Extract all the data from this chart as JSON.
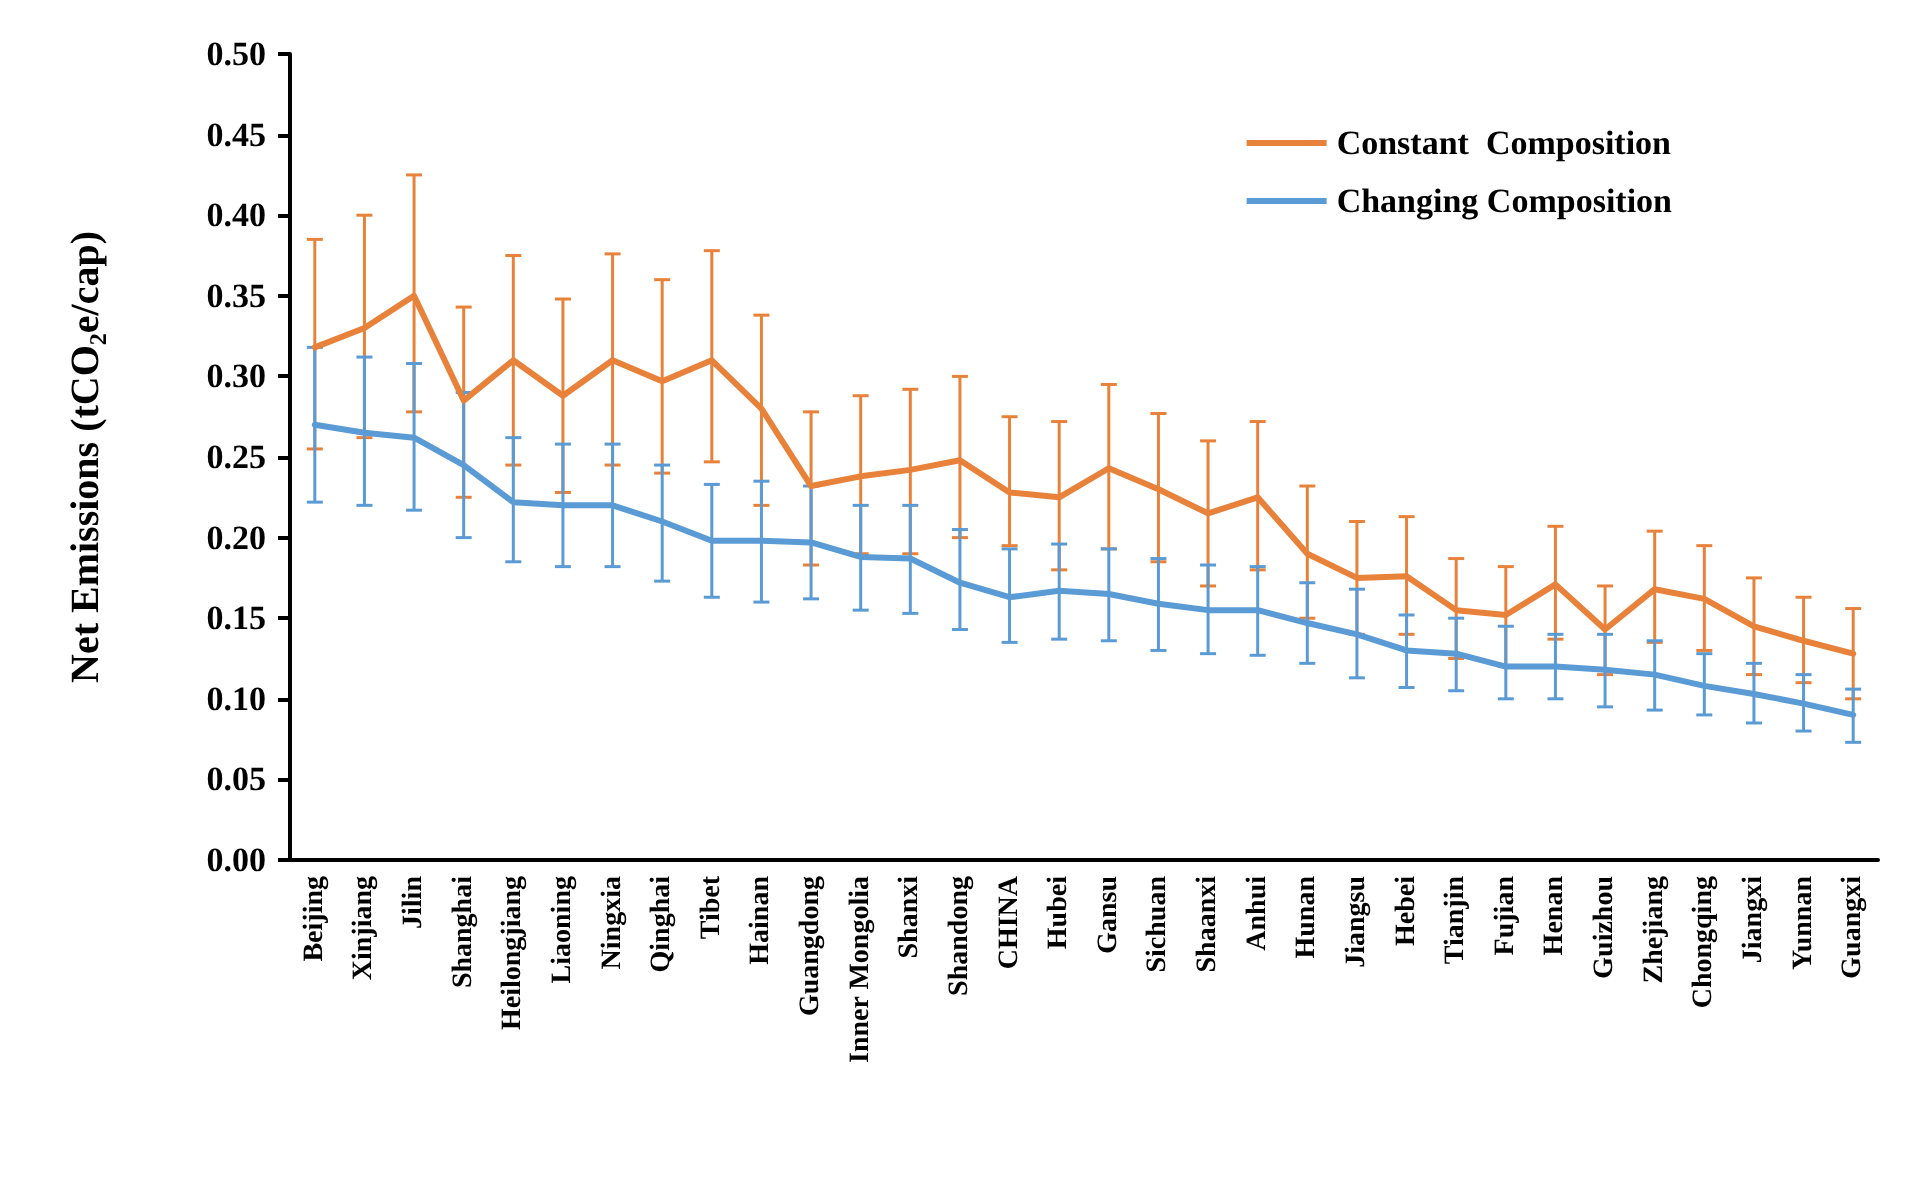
{
  "chart_data": {
    "type": "line",
    "ylabel": "Net Emissions (tCO₂e/cap)",
    "categories": [
      "Beijing",
      "Xinjiang",
      "Jilin",
      "Shanghai",
      "Heilongjiang",
      "Liaoning",
      "Ningxia",
      "Qinghai",
      "Tibet",
      "Hainan",
      "Guangdong",
      "Inner Mongolia",
      "Shanxi",
      "Shandong",
      "CHINA",
      "Hubei",
      "Gansu",
      "Sichuan",
      "Shaanxi",
      "Anhui",
      "Hunan",
      "Jiangsu",
      "Hebei",
      "Tianjin",
      "Fujian",
      "Henan",
      "Guizhou",
      "Zhejiang",
      "Chongqing",
      "Jiangxi",
      "Yunnan",
      "Guangxi"
    ],
    "series": [
      {
        "name": "Constant  Composition",
        "color": "#e8823a",
        "values": [
          0.318,
          0.33,
          0.35,
          0.285,
          0.31,
          0.288,
          0.31,
          0.297,
          0.31,
          0.28,
          0.232,
          0.238,
          0.242,
          0.248,
          0.228,
          0.225,
          0.243,
          0.23,
          0.215,
          0.225,
          0.19,
          0.175,
          0.176,
          0.155,
          0.152,
          0.171,
          0.143,
          0.168,
          0.162,
          0.145,
          0.136,
          0.128
        ],
        "errors": [
          [
            0.255,
            0.385
          ],
          [
            0.262,
            0.4
          ],
          [
            0.278,
            0.425
          ],
          [
            0.225,
            0.343
          ],
          [
            0.245,
            0.375
          ],
          [
            0.228,
            0.348
          ],
          [
            0.245,
            0.376
          ],
          [
            0.24,
            0.36
          ],
          [
            0.247,
            0.378
          ],
          [
            0.22,
            0.338
          ],
          [
            0.183,
            0.278
          ],
          [
            0.19,
            0.288
          ],
          [
            0.19,
            0.292
          ],
          [
            0.2,
            0.3
          ],
          [
            0.195,
            0.275
          ],
          [
            0.18,
            0.272
          ],
          [
            0.193,
            0.295
          ],
          [
            0.185,
            0.277
          ],
          [
            0.17,
            0.26
          ],
          [
            0.18,
            0.272
          ],
          [
            0.15,
            0.232
          ],
          [
            0.14,
            0.21
          ],
          [
            0.14,
            0.213
          ],
          [
            0.125,
            0.187
          ],
          [
            0.12,
            0.182
          ],
          [
            0.137,
            0.207
          ],
          [
            0.115,
            0.17
          ],
          [
            0.135,
            0.204
          ],
          [
            0.13,
            0.195
          ],
          [
            0.115,
            0.175
          ],
          [
            0.11,
            0.163
          ],
          [
            0.1,
            0.156
          ]
        ]
      },
      {
        "name": "Changing Composition",
        "color": "#5b9bd5",
        "values": [
          0.27,
          0.265,
          0.262,
          0.245,
          0.222,
          0.22,
          0.22,
          0.21,
          0.198,
          0.198,
          0.197,
          0.188,
          0.187,
          0.172,
          0.163,
          0.167,
          0.165,
          0.159,
          0.155,
          0.155,
          0.147,
          0.14,
          0.13,
          0.128,
          0.12,
          0.12,
          0.118,
          0.115,
          0.108,
          0.103,
          0.097,
          0.09
        ],
        "errors": [
          [
            0.222,
            0.318
          ],
          [
            0.22,
            0.312
          ],
          [
            0.217,
            0.308
          ],
          [
            0.2,
            0.29
          ],
          [
            0.185,
            0.262
          ],
          [
            0.182,
            0.258
          ],
          [
            0.182,
            0.258
          ],
          [
            0.173,
            0.245
          ],
          [
            0.163,
            0.233
          ],
          [
            0.16,
            0.235
          ],
          [
            0.162,
            0.232
          ],
          [
            0.155,
            0.22
          ],
          [
            0.153,
            0.22
          ],
          [
            0.143,
            0.205
          ],
          [
            0.135,
            0.193
          ],
          [
            0.137,
            0.196
          ],
          [
            0.136,
            0.193
          ],
          [
            0.13,
            0.187
          ],
          [
            0.128,
            0.183
          ],
          [
            0.127,
            0.182
          ],
          [
            0.122,
            0.172
          ],
          [
            0.113,
            0.168
          ],
          [
            0.107,
            0.152
          ],
          [
            0.105,
            0.15
          ],
          [
            0.1,
            0.145
          ],
          [
            0.1,
            0.14
          ],
          [
            0.095,
            0.14
          ],
          [
            0.093,
            0.136
          ],
          [
            0.09,
            0.128
          ],
          [
            0.085,
            0.122
          ],
          [
            0.08,
            0.115
          ],
          [
            0.073,
            0.106
          ]
        ]
      }
    ],
    "ylim": [
      0,
      0.5
    ],
    "yticks": [
      {
        "value": 0,
        "label": "0.00"
      },
      {
        "value": 0.05,
        "label": "0.05"
      },
      {
        "value": 0.1,
        "label": "0.10"
      },
      {
        "value": 0.15,
        "label": "0.15"
      },
      {
        "value": 0.2,
        "label": "0.20"
      },
      {
        "value": 0.25,
        "label": "0.25"
      },
      {
        "value": 0.3,
        "label": "0.30"
      },
      {
        "value": 0.35,
        "label": "0.35"
      },
      {
        "value": 0.4,
        "label": "0.40"
      },
      {
        "value": 0.45,
        "label": "0.45"
      },
      {
        "value": 0.5,
        "label": "0.50"
      }
    ],
    "grid": false,
    "legend": "top right",
    "marker": "none",
    "line_style": "solid"
  }
}
